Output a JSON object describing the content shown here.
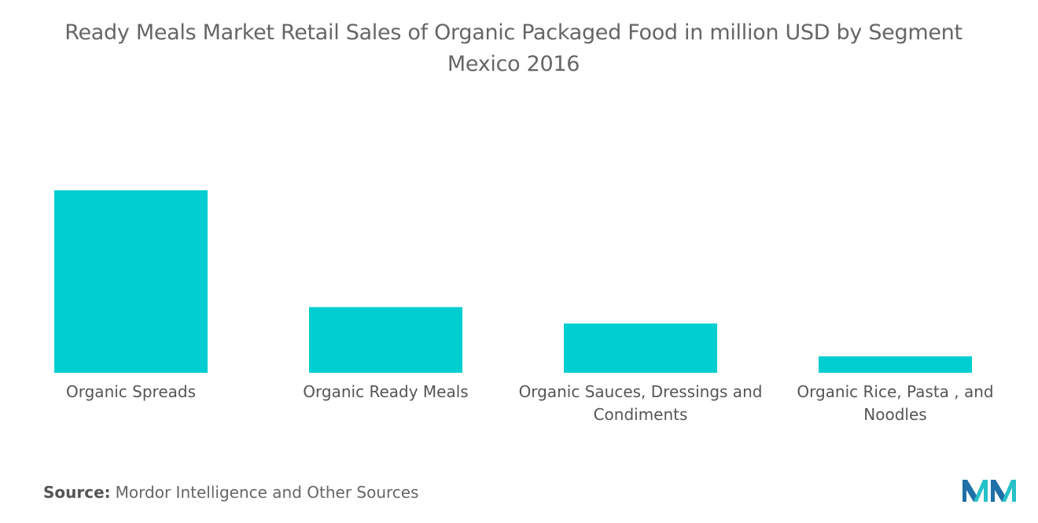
{
  "chart_data": {
    "type": "bar",
    "title": "Ready Meals Market Retail Sales of Organic Packaged Food in million USD by Segment",
    "subtitle": "Mexico 2016",
    "categories": [
      "Organic Spreads",
      "Organic Ready Meals",
      "Organic Sauces, Dressings and Condiments",
      "Organic Rice, Pasta , and Noodles"
    ],
    "values": [
      100,
      36,
      27,
      9
    ],
    "ylim": [
      0,
      100
    ],
    "xlabel": "",
    "ylabel": "",
    "grid": false,
    "legend": "none",
    "bar_color": "#00CED1"
  },
  "source": {
    "label": "Source:",
    "text": "Mordor Intelligence and Other Sources"
  },
  "logo": {
    "icon": "mordor-intelligence-logo",
    "colors": [
      "#1F6FA8",
      "#27C1C7"
    ]
  }
}
